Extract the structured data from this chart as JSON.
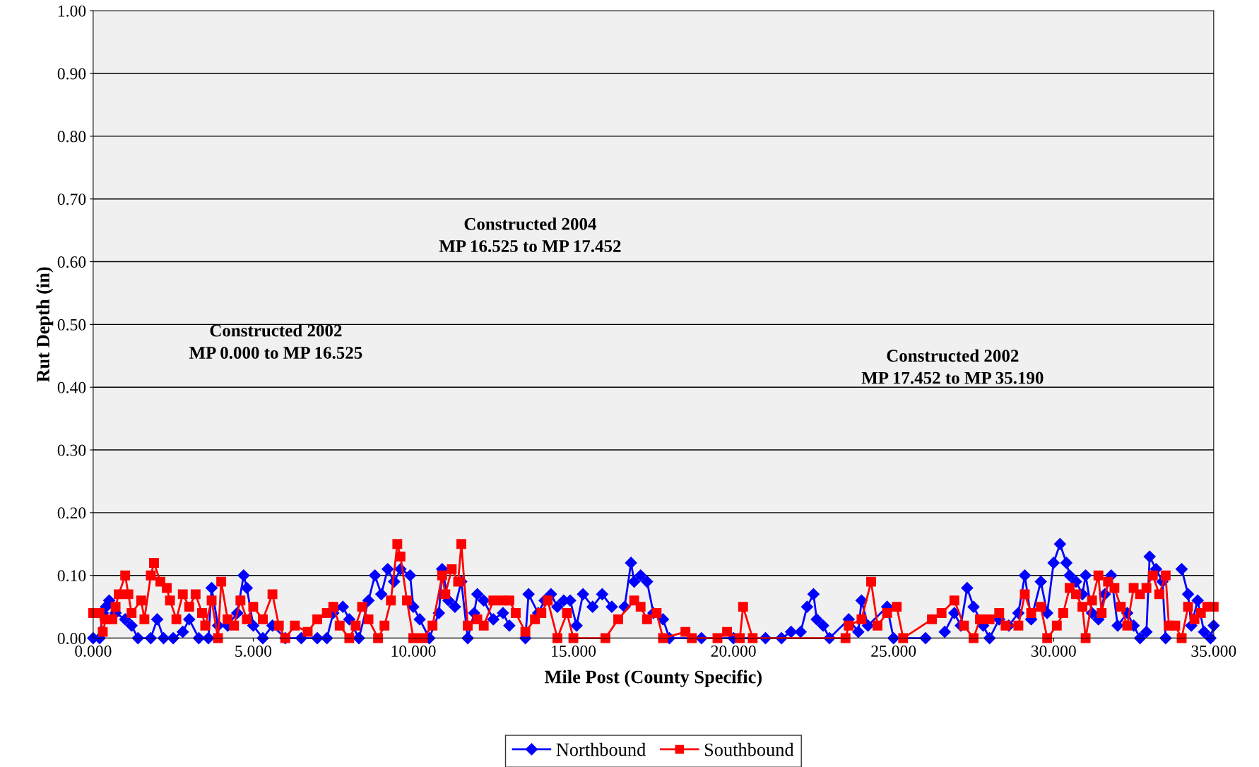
{
  "chart_data": {
    "type": "line",
    "xlabel": "Mile Post (County Specific)",
    "ylabel": "Rut Depth (in)",
    "xlim": [
      0,
      35
    ],
    "xticks": [
      {
        "value": 0,
        "label": "0.000"
      },
      {
        "value": 5,
        "label": "5.000"
      },
      {
        "value": 10,
        "label": "10.000"
      },
      {
        "value": 15,
        "label": "15.000"
      },
      {
        "value": 20,
        "label": "20.000"
      },
      {
        "value": 25,
        "label": "25.000"
      },
      {
        "value": 30,
        "label": "30.000"
      },
      {
        "value": 35,
        "label": "35.000"
      }
    ],
    "ylim": [
      0,
      1
    ],
    "yticks": [
      {
        "value": 0,
        "label": "0.00"
      },
      {
        "value": 0.1,
        "label": "0.10"
      },
      {
        "value": 0.2,
        "label": "0.20"
      },
      {
        "value": 0.3,
        "label": "0.30"
      },
      {
        "value": 0.4,
        "label": "0.40"
      },
      {
        "value": 0.5,
        "label": "0.50"
      },
      {
        "value": 0.6,
        "label": "0.60"
      },
      {
        "value": 0.7,
        "label": "0.70"
      },
      {
        "value": 0.8,
        "label": "0.80"
      },
      {
        "value": 0.9,
        "label": "0.90"
      },
      {
        "value": 1,
        "label": "1.00"
      }
    ],
    "grid": "y",
    "legend": "bottom",
    "annotations": [
      "Constructed 2002\nMP 0.000 to MP 16.525",
      "Constructed 2004\nMP 16.525 to MP 17.452",
      "Constructed 2002\nMP 17.452 to MP 35.190"
    ],
    "series": [
      {
        "name": "Northbound",
        "color": "#0000ff",
        "marker": "diamond",
        "x": [
          0,
          0.2,
          0.3,
          0.4,
          0.5,
          0.7,
          1.0,
          1.2,
          1.4,
          1.8,
          2.0,
          2.2,
          2.5,
          2.8,
          3.0,
          3.3,
          3.6,
          3.7,
          3.9,
          4.2,
          4.5,
          4.7,
          4.8,
          5.0,
          5.3,
          5.6,
          6.0,
          6.5,
          7.0,
          7.3,
          7.5,
          7.8,
          8.0,
          8.3,
          8.6,
          8.8,
          9.0,
          9.2,
          9.4,
          9.6,
          9.9,
          10.0,
          10.2,
          10.5,
          10.8,
          10.9,
          11.1,
          11.3,
          11.5,
          11.7,
          11.9,
          12.0,
          12.2,
          12.5,
          12.8,
          13.0,
          13.2,
          13.5,
          13.6,
          13.9,
          14.1,
          14.3,
          14.5,
          14.7,
          14.9,
          15.1,
          15.3,
          15.6,
          15.9,
          16.2,
          16.4,
          16.6,
          16.8,
          16.9,
          17.1,
          17.3,
          17.5,
          17.8,
          18.0,
          19.0,
          20.0,
          21.0,
          21.5,
          21.8,
          22.1,
          22.3,
          22.5,
          22.6,
          22.8,
          23.0,
          23.6,
          23.9,
          24.0,
          24.2,
          24.8,
          25.0,
          26.0,
          26.2,
          26.6,
          26.9,
          27.1,
          27.3,
          27.5,
          27.8,
          28.0,
          28.3,
          28.6,
          28.9,
          29.1,
          29.3,
          29.6,
          29.8,
          30.0,
          30.2,
          30.4,
          30.5,
          30.7,
          30.9,
          31.0,
          31.2,
          31.4,
          31.6,
          31.8,
          32.0,
          32.3,
          32.5,
          32.7,
          32.9,
          33.0,
          33.2,
          33.4,
          33.5,
          33.8,
          34.0,
          34.2,
          34.3,
          34.5,
          34.7,
          34.9,
          35.0
        ],
        "values": [
          0,
          0,
          0.04,
          0.05,
          0.06,
          0.04,
          0.03,
          0.02,
          0,
          0,
          0.03,
          0,
          0,
          0.01,
          0.03,
          0,
          0,
          0.08,
          0.02,
          0.02,
          0.04,
          0.1,
          0.08,
          0.02,
          0,
          0.02,
          0,
          0,
          0,
          0,
          0.04,
          0.05,
          0.03,
          0,
          0.06,
          0.1,
          0.07,
          0.11,
          0.09,
          0.11,
          0.1,
          0.05,
          0.03,
          0,
          0.04,
          0.11,
          0.06,
          0.05,
          0.09,
          0,
          0.04,
          0.07,
          0.06,
          0.03,
          0.04,
          0.02,
          null,
          0,
          0.07,
          0.04,
          0.06,
          0.07,
          0.05,
          0.06,
          0.06,
          0.02,
          0.07,
          0.05,
          0.07,
          0.05,
          null,
          0.05,
          0.12,
          0.09,
          0.1,
          0.09,
          0.04,
          0.03,
          0,
          0,
          0,
          0,
          0,
          0.01,
          0.01,
          0.05,
          0.07,
          0.03,
          0.02,
          0,
          0.03,
          0.01,
          0.06,
          0.02,
          0.05,
          0,
          0,
          null,
          0.01,
          0.04,
          0.02,
          0.08,
          0.05,
          0.02,
          0,
          0.03,
          0.02,
          0.04,
          0.1,
          0.03,
          0.09,
          0.04,
          0.12,
          0.15,
          0.12,
          0.1,
          0.09,
          0.07,
          0.1,
          0.04,
          0.03,
          0.07,
          0.1,
          0.02,
          0.04,
          0.02,
          0,
          0.01,
          0.13,
          0.11,
          0.09,
          0,
          null,
          0.11,
          0.07,
          0.02,
          0.06,
          0.01,
          0,
          0.02
        ]
      },
      {
        "name": "Southbound",
        "color": "#ff0000",
        "marker": "square",
        "x": [
          0,
          0.2,
          0.3,
          0.4,
          0.6,
          0.7,
          0.8,
          1.0,
          1.1,
          1.2,
          1.5,
          1.6,
          1.8,
          1.9,
          2.1,
          2.3,
          2.4,
          2.6,
          2.8,
          3.0,
          3.2,
          3.4,
          3.5,
          3.7,
          3.9,
          4.0,
          4.2,
          4.4,
          4.6,
          4.8,
          5.0,
          5.3,
          5.6,
          5.8,
          6.0,
          6.3,
          6.7,
          7.0,
          7.3,
          7.5,
          7.7,
          8.0,
          8.2,
          8.4,
          8.6,
          8.9,
          9.1,
          9.3,
          9.5,
          9.6,
          9.8,
          10.0,
          10.3,
          10.6,
          10.9,
          11.0,
          11.2,
          11.4,
          11.5,
          11.7,
          12.0,
          12.2,
          12.5,
          12.8,
          13.0,
          13.2,
          13.5,
          13.8,
          14.0,
          14.2,
          14.5,
          14.8,
          15.0,
          16.0,
          16.4,
          16.9,
          17.1,
          17.3,
          17.6,
          17.8,
          18.5,
          18.7,
          19.5,
          19.8,
          20.2,
          20.3,
          20.6,
          23.5,
          23.6,
          24.0,
          24.3,
          24.5,
          24.8,
          25.1,
          25.3,
          26.2,
          26.5,
          26.9,
          27.2,
          27.5,
          27.7,
          28.0,
          28.3,
          28.5,
          28.9,
          29.1,
          29.3,
          29.6,
          29.8,
          30.1,
          30.3,
          30.5,
          30.7,
          30.9,
          31.0,
          31.2,
          31.4,
          31.5,
          31.7,
          31.9,
          32.1,
          32.3,
          32.5,
          32.7,
          32.9,
          33.1,
          33.3,
          33.5,
          33.6,
          33.8,
          34.0,
          34.2,
          34.4,
          34.6,
          34.8,
          35.0
        ],
        "values": [
          0.04,
          0.04,
          0.01,
          0.03,
          0.03,
          0.05,
          0.07,
          0.1,
          0.07,
          0.04,
          0.06,
          0.03,
          0.1,
          0.12,
          0.09,
          0.08,
          0.06,
          0.03,
          0.07,
          0.05,
          0.07,
          0.04,
          0.02,
          0.06,
          0,
          0.09,
          0.03,
          0.02,
          0.06,
          0.03,
          0.05,
          0.03,
          0.07,
          0.02,
          0,
          0.02,
          0.01,
          0.03,
          0.04,
          0.05,
          0.02,
          0,
          0.02,
          0.05,
          0.03,
          0,
          0.02,
          0.06,
          0.15,
          0.13,
          0.06,
          0,
          0,
          0.02,
          0.1,
          0.07,
          0.11,
          0.09,
          0.15,
          0.02,
          0.03,
          0.02,
          0.06,
          0.06,
          0.06,
          0.04,
          0.01,
          0.03,
          0.04,
          0.06,
          0,
          0.04,
          0,
          0,
          0.03,
          0.06,
          0.05,
          0.03,
          0.04,
          0,
          0.01,
          0,
          0,
          0.01,
          0,
          0.05,
          0,
          0,
          0.02,
          0.03,
          0.09,
          0.02,
          0.04,
          0.05,
          0,
          0.03,
          0.04,
          0.06,
          0.02,
          0,
          0.03,
          0.03,
          0.04,
          0.02,
          0.02,
          0.07,
          0.04,
          0.05,
          0,
          0.02,
          0.04,
          0.08,
          0.07,
          0.05,
          0,
          0.06,
          0.1,
          0.04,
          0.09,
          0.08,
          0.05,
          0.02,
          0.08,
          0.07,
          0.08,
          0.1,
          0.07,
          0.1,
          0.02,
          0.02,
          0,
          0.05,
          0.03,
          0.04,
          0.05,
          0.05
        ]
      }
    ]
  }
}
